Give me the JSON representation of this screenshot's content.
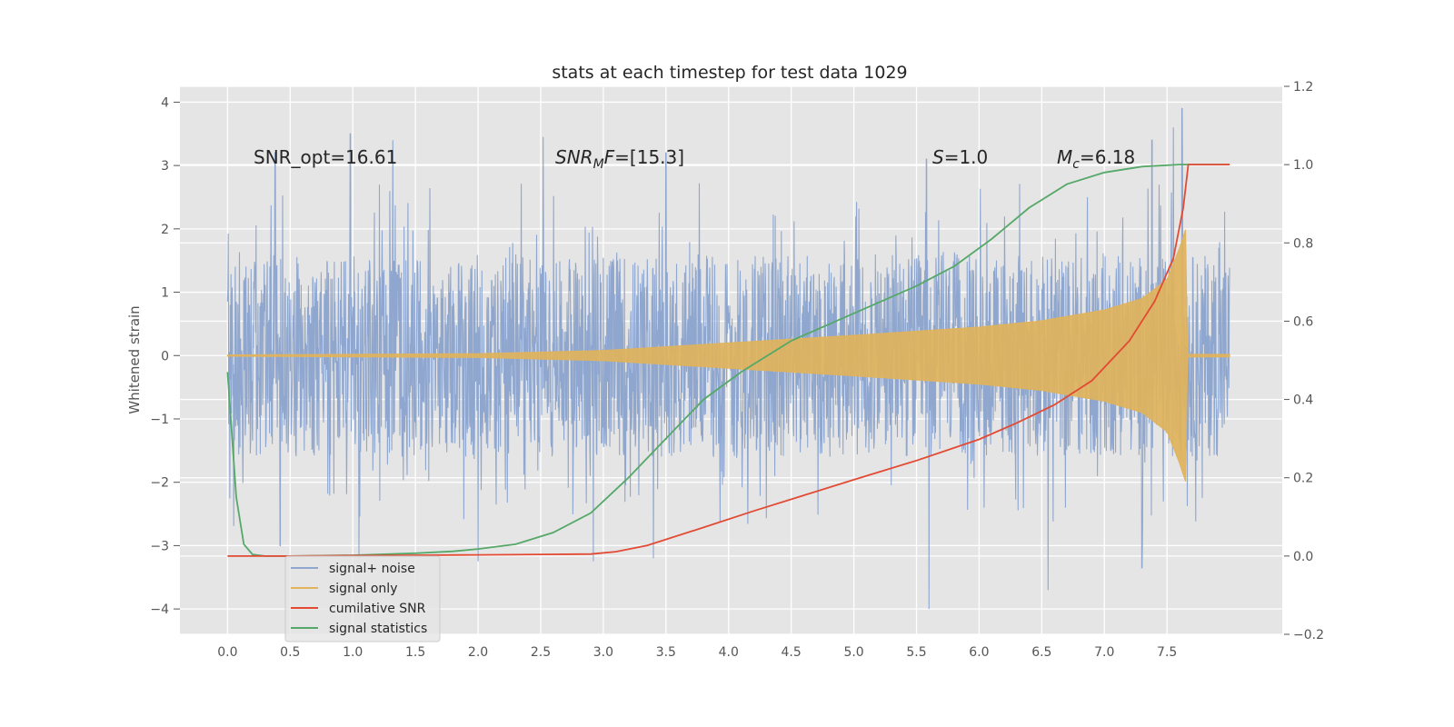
{
  "chart_data": {
    "type": "line",
    "title": "stats at each timestep for test data 1029",
    "ylabel": "Whitened strain",
    "xlim": [
      -0.38,
      8.42
    ],
    "ylim": [
      -4.4,
      4.25
    ],
    "y2lim": [
      -0.2,
      1.2
    ],
    "x_ticks": [
      0,
      0.5,
      1,
      1.5,
      2,
      2.5,
      3,
      3.5,
      4,
      4.5,
      5,
      5.5,
      6,
      6.5,
      7,
      7.5
    ],
    "x_tick_labels": [
      "0.0",
      "0.5",
      "1.0",
      "1.5",
      "2.0",
      "2.5",
      "3.0",
      "3.5",
      "4.0",
      "4.5",
      "5.0",
      "5.5",
      "6.0",
      "6.5",
      "7.0",
      "7.5"
    ],
    "y_ticks": [
      -4,
      -3,
      -2,
      -1,
      0,
      1,
      2,
      3,
      4
    ],
    "y_tick_labels": [
      "−4",
      "−3",
      "−2",
      "−1",
      "0",
      "1",
      "2",
      "3",
      "4"
    ],
    "y2_ticks": [
      -0.2,
      0,
      0.2,
      0.4,
      0.6,
      0.8,
      1.0,
      1.2
    ],
    "y2_tick_labels": [
      "−0.2",
      "0.0",
      "0.2",
      "0.4",
      "0.6",
      "0.8",
      "1.0",
      "1.2"
    ],
    "grid": true,
    "legend_position": "lower-left",
    "annotations": {
      "snr_opt": "SNR_opt=16.61",
      "snr_mf_base": "SNR",
      "snr_mf_sub": "M",
      "snr_mf_tail": "F=[15.3]",
      "s_sym": "S",
      "s_val": "=1.0",
      "mc_base": "M",
      "mc_sub": "c",
      "mc_val": "=6.18"
    },
    "series": [
      {
        "name": "signal+ noise",
        "color": "#8fa7cf",
        "axis": "left",
        "t_range": [
          0,
          8.0
        ],
        "amplitude_typical": 1.0,
        "peak_values": [
          [
            0.38,
            3.2
          ],
          [
            0.98,
            3.5
          ],
          [
            1.32,
            3.4
          ],
          [
            2.52,
            3.45
          ],
          [
            3.5,
            3.2
          ],
          [
            5.58,
            3.1
          ],
          [
            7.38,
            3.4
          ],
          [
            7.55,
            3.6
          ],
          [
            7.62,
            3.9
          ],
          [
            0.42,
            -3.0
          ],
          [
            1.05,
            -3.2
          ],
          [
            2.0,
            -3.25
          ],
          [
            2.92,
            -3.25
          ],
          [
            3.4,
            -3.2
          ],
          [
            5.6,
            -4.0
          ],
          [
            6.55,
            -3.7
          ],
          [
            7.3,
            -3.35
          ]
        ]
      },
      {
        "name": "signal only",
        "color": "#e0b35c",
        "axis": "left",
        "envelope": [
          [
            0,
            0.01
          ],
          [
            2.0,
            0.03
          ],
          [
            3.0,
            0.08
          ],
          [
            4.0,
            0.2
          ],
          [
            5.0,
            0.32
          ],
          [
            6.0,
            0.45
          ],
          [
            6.5,
            0.55
          ],
          [
            7.0,
            0.72
          ],
          [
            7.3,
            0.9
          ],
          [
            7.5,
            1.2
          ],
          [
            7.6,
            1.7
          ],
          [
            7.65,
            2.0
          ],
          [
            7.66,
            0.02
          ],
          [
            8.0,
            0.02
          ]
        ]
      },
      {
        "name": "cumilative SNR",
        "color": "#e24a33",
        "axis": "right",
        "x": [
          0,
          0.5,
          1.0,
          1.5,
          2.0,
          2.5,
          2.9,
          3.1,
          3.35,
          3.8,
          4.2,
          4.6,
          5.0,
          5.5,
          6.0,
          6.3,
          6.6,
          6.9,
          7.2,
          7.4,
          7.55,
          7.63,
          7.67,
          8.0
        ],
        "y": [
          0.0,
          0.0,
          0.001,
          0.002,
          0.003,
          0.004,
          0.005,
          0.011,
          0.027,
          0.073,
          0.115,
          0.155,
          0.195,
          0.244,
          0.298,
          0.34,
          0.386,
          0.448,
          0.55,
          0.65,
          0.76,
          0.89,
          1.0,
          1.0
        ]
      },
      {
        "name": "signal statistics",
        "color": "#55a868",
        "axis": "right",
        "x": [
          0,
          0.07,
          0.13,
          0.2,
          0.3,
          0.5,
          1.0,
          1.5,
          1.8,
          2.0,
          2.3,
          2.6,
          2.9,
          3.2,
          3.5,
          3.8,
          4.1,
          4.5,
          5.0,
          5.5,
          5.8,
          6.1,
          6.4,
          6.7,
          7.0,
          7.3,
          7.6,
          8.0
        ],
        "y": [
          0.47,
          0.15,
          0.03,
          0.004,
          0.0,
          0.0,
          0.002,
          0.007,
          0.012,
          0.018,
          0.03,
          0.06,
          0.11,
          0.2,
          0.3,
          0.4,
          0.47,
          0.55,
          0.62,
          0.69,
          0.74,
          0.81,
          0.89,
          0.95,
          0.98,
          0.995,
          1.0,
          1.0
        ]
      }
    ]
  }
}
